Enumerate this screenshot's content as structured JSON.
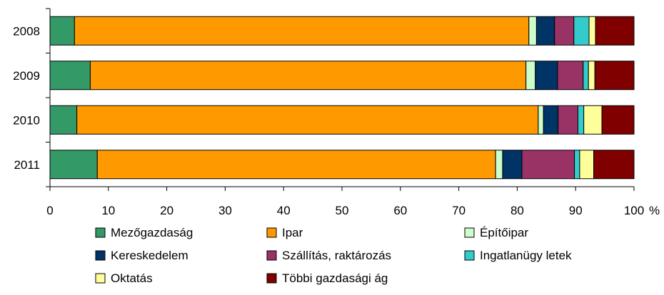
{
  "chart_data": {
    "type": "bar",
    "orientation": "horizontal",
    "stacked": true,
    "categories": [
      "2008",
      "2009",
      "2010",
      "2011"
    ],
    "series": [
      {
        "name": "Mezőgazdaság",
        "color": "#339966",
        "values": [
          4.2,
          6.9,
          4.6,
          8.1
        ]
      },
      {
        "name": "Ipar",
        "color": "#ff9900",
        "values": [
          77.8,
          74.6,
          79.0,
          68.2
        ]
      },
      {
        "name": "Építőipar",
        "color": "#ccffcc",
        "values": [
          1.3,
          1.6,
          0.9,
          1.2
        ]
      },
      {
        "name": "Kereskedelem",
        "color": "#003366",
        "values": [
          3.1,
          3.8,
          2.5,
          3.3
        ]
      },
      {
        "name": "Szállítás, raktározás",
        "color": "#993366",
        "values": [
          3.3,
          4.4,
          3.4,
          9.0
        ]
      },
      {
        "name": "Ingatlanügy letek",
        "color": "#33cccc",
        "values": [
          2.6,
          0.9,
          1.0,
          0.9
        ]
      },
      {
        "name": "Oktatás",
        "color": "#ffff99",
        "values": [
          1.1,
          1.1,
          3.1,
          2.4
        ]
      },
      {
        "name": "Többi gazdasági ág",
        "color": "#800000",
        "values": [
          6.6,
          6.7,
          5.5,
          6.9
        ]
      }
    ],
    "x_ticks": [
      "0",
      "10",
      "20",
      "30",
      "40",
      "50",
      "60",
      "70",
      "80",
      "90",
      "100"
    ],
    "xlim": [
      0,
      100
    ],
    "unit": "%",
    "grid": false,
    "legend_position": "bottom"
  }
}
